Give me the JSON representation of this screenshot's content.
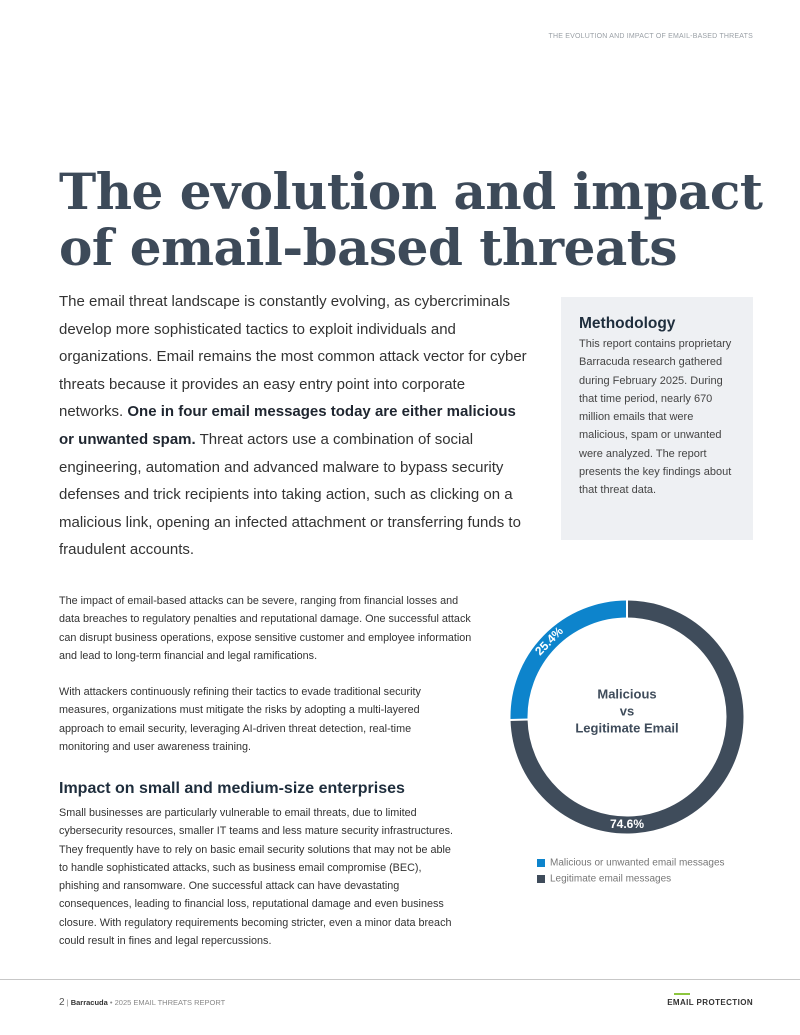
{
  "header": {
    "running_title": "THE EVOLUTION AND IMPACT OF EMAIL-BASED THREATS"
  },
  "title": "The evolution and impact of email-based threats",
  "intro": {
    "before": "The email threat landscape is constantly evolving, as cybercriminals develop more sophisticated tactics to exploit individuals and organizations. Email remains the most common attack vector for cyber threats because it provides an easy entry point into corporate networks. ",
    "emphasis": "One in four email messages today are either malicious or unwanted spam.",
    "after": " Threat actors use a combination of social engineering, automation and advanced malware to bypass security defenses and trick recipients into taking action, such as clicking on a malicious link, opening an infected attachment or transferring funds to fraudulent accounts."
  },
  "methodology": {
    "heading": "Methodology",
    "body": "This report contains proprietary Barracuda research gathered during February 2025. During that time period, nearly 670 million emails that were malicious, spam or unwanted were analyzed. The report presents the key findings about that threat data."
  },
  "paragraphs": [
    "The impact of email-based attacks can be severe, ranging from financial losses and data breaches to regulatory penalties and reputational damage. One successful attack can disrupt business operations, expose sensitive customer and employee information and lead to long-term financial and legal ramifications.",
    "With attackers continuously refining their tactics to evade traditional security measures, organizations must mitigate the risks by adopting a multi-layered approach to email security, leveraging AI-driven threat detection, real-time monitoring and user awareness training."
  ],
  "section": {
    "heading": "Impact on small and medium-size enterprises",
    "body": "Small businesses are particularly vulnerable to email threats, due to limited cybersecurity resources, smaller IT teams and less mature security infrastructures. They frequently have to rely on basic email security solutions that may not be able to handle sophisticated attacks, such as business email compromise (BEC), phishing and ransomware. One successful attack can have devastating consequences, leading to financial loss, reputational damage and even business closure. With regulatory requirements becoming stricter, even a minor data breach could result in fines and legal repercussions."
  },
  "chart_data": {
    "type": "donut",
    "center_label": [
      "Malicious",
      "vs",
      "Legitimate Email"
    ],
    "categories": [
      "Malicious or unwanted email messages",
      "Legitimate email messages"
    ],
    "values": [
      25.4,
      74.6
    ],
    "value_labels": [
      "25.4%",
      "74.6%"
    ],
    "colors": [
      "#0d84cc",
      "#3f4c5b"
    ]
  },
  "footer": {
    "page": "2",
    "divider": "|",
    "brand": "Barracuda",
    "separator": "•",
    "report": "2025 EMAIL THREATS REPORT",
    "section": "EMAIL PROTECTION"
  }
}
